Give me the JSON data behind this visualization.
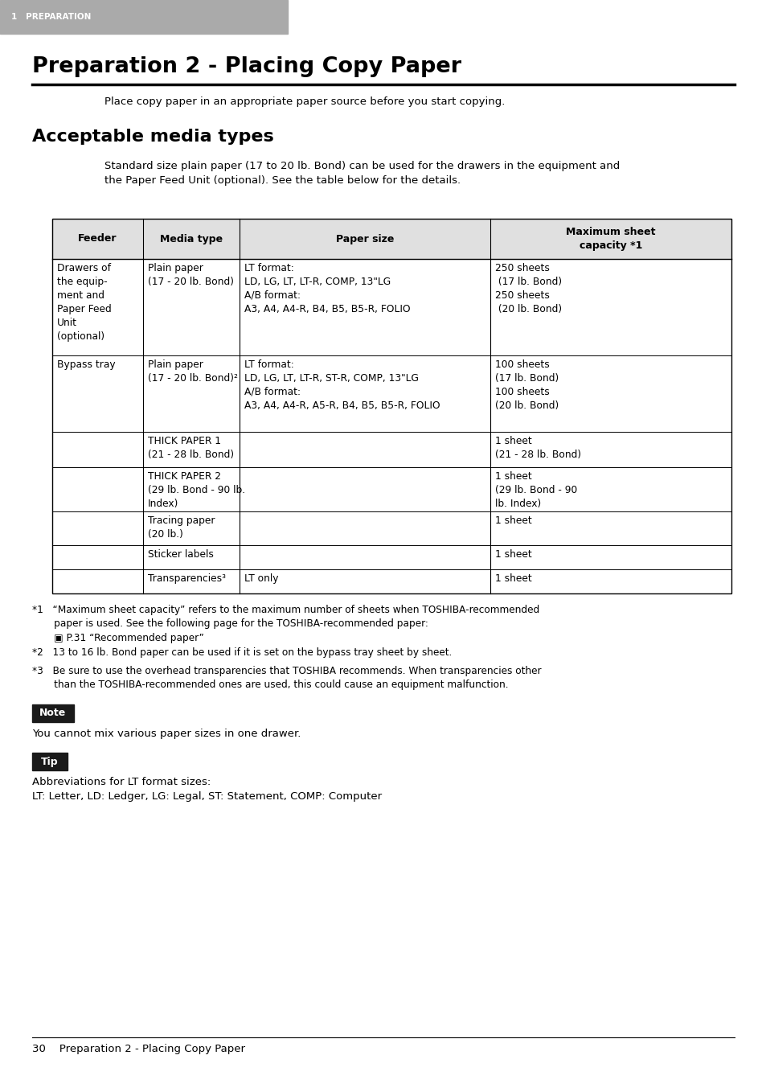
{
  "page_bg": "#ffffff",
  "header_bg": "#aaaaaa",
  "header_text": "1   PREPARATION",
  "header_text_color": "#ffffff",
  "title": "Preparation 2 - Placing Copy Paper",
  "title_color": "#000000",
  "intro_text": "Place copy paper in an appropriate paper source before you start copying.",
  "section_title": "Acceptable media types",
  "body_text": "Standard size plain paper (17 to 20 lb. Bond) can be used for the drawers in the equipment and\nthe Paper Feed Unit (optional). See the table below for the details.",
  "table_header": [
    "Feeder",
    "Media type",
    "Paper size",
    "Maximum sheet\ncapacity *1"
  ],
  "footnotes": [
    "*1   “Maximum sheet capacity” refers to the maximum number of sheets when TOSHIBA-recommended\n       paper is used. See the following page for the TOSHIBA-recommended paper:\n       ▣ P.31 “Recommended paper”",
    "*2   13 to 16 lb. Bond paper can be used if it is set on the bypass tray sheet by sheet.",
    "*3   Be sure to use the overhead transparencies that TOSHIBA recommends. When transparencies other\n       than the TOSHIBA-recommended ones are used, this could cause an equipment malfunction."
  ],
  "note_label": "Note",
  "note_text": "You cannot mix various paper sizes in one drawer.",
  "tip_label": "Tip",
  "tip_text": "Abbreviations for LT format sizes:\nLT: Letter, LD: Ledger, LG: Legal, ST: Statement, COMP: Computer",
  "footer_text": "30    Preparation 2 - Placing Copy Paper",
  "label_bg": "#1a1a1a",
  "label_text_color": "#ffffff"
}
